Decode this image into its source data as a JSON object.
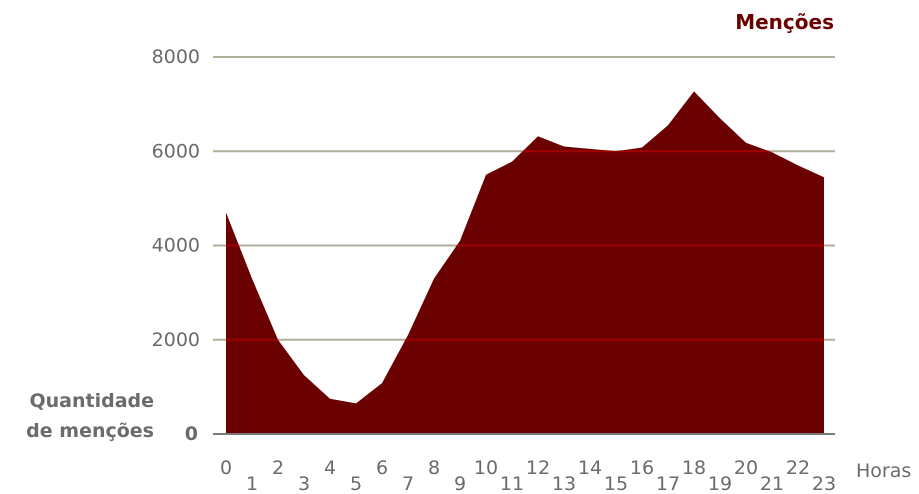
{
  "chart_data": {
    "type": "area",
    "legend": "Menções",
    "ylabel_line1": "Quantidade",
    "ylabel_line2": "de menções",
    "xlabel": "Horas",
    "ylim": [
      0,
      8000
    ],
    "y_ticks": [
      "8000",
      "6000",
      "4000",
      "2000",
      "0"
    ],
    "y_tick_values": [
      8000,
      6000,
      4000,
      2000,
      0
    ],
    "x": [
      "0",
      "1",
      "2",
      "3",
      "4",
      "5",
      "6",
      "7",
      "8",
      "9",
      "10",
      "11",
      "12",
      "13",
      "14",
      "15",
      "16",
      "17",
      "18",
      "19",
      "20",
      "21",
      "22",
      "23"
    ],
    "values": [
      4700,
      3300,
      2000,
      1250,
      750,
      650,
      1080,
      2100,
      3300,
      4100,
      5500,
      5780,
      6320,
      6100,
      6050,
      6000,
      6080,
      6550,
      7270,
      6700,
      6180,
      5980,
      5700,
      5450
    ],
    "grid": true,
    "colors": {
      "area": "#6b0000",
      "grid_minor": "#b0ad98",
      "grid_over": "#a00000",
      "axis": "#7a7a7a"
    }
  }
}
